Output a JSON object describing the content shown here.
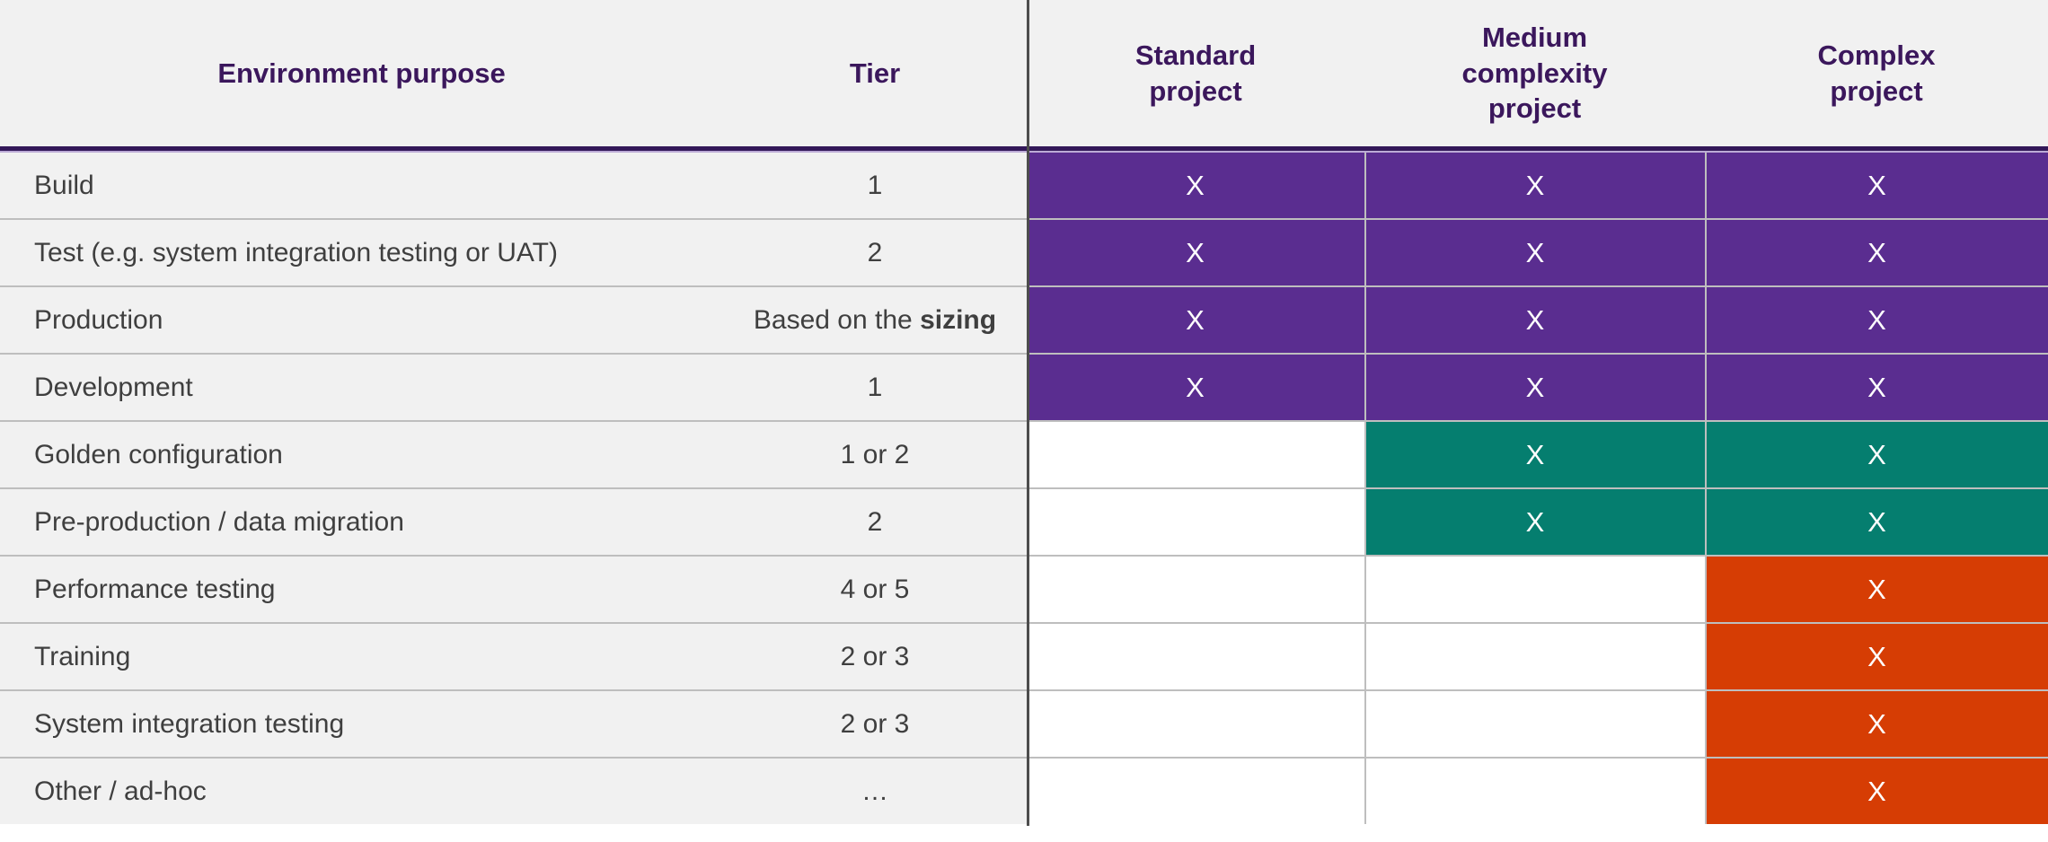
{
  "palette": {
    "purple": "#5A2D90",
    "teal": "#057E6F",
    "orange": "#D63D04",
    "none": "#FFFFFF",
    "header_text": "#3B175C",
    "band": "#331859",
    "band_glow": "#BCABD6",
    "left_bg": "#F1F1F1",
    "body_text": "#3F3F3F",
    "grid": "#BEBEBE",
    "section_divider": "#4D4D4D",
    "mark_text": "#FFFFFF"
  },
  "header": {
    "purpose": "Environment purpose",
    "tier": "Tier",
    "projects": [
      "Standard project",
      "Medium complexity project",
      "Complex project"
    ]
  },
  "rows": [
    {
      "purpose": "Build",
      "tier": "1",
      "cells": [
        {
          "mark": "X",
          "color": "purple"
        },
        {
          "mark": "X",
          "color": "purple"
        },
        {
          "mark": "X",
          "color": "purple"
        }
      ]
    },
    {
      "purpose": "Test (e.g. system integration testing or UAT)",
      "tier": "2",
      "cells": [
        {
          "mark": "X",
          "color": "purple"
        },
        {
          "mark": "X",
          "color": "purple"
        },
        {
          "mark": "X",
          "color": "purple"
        }
      ]
    },
    {
      "purpose": "Production",
      "tier": "Based on the ",
      "tier_bold": "sizing",
      "cells": [
        {
          "mark": "X",
          "color": "purple"
        },
        {
          "mark": "X",
          "color": "purple"
        },
        {
          "mark": "X",
          "color": "purple"
        }
      ]
    },
    {
      "purpose": "Development",
      "tier": "1",
      "cells": [
        {
          "mark": "X",
          "color": "purple"
        },
        {
          "mark": "X",
          "color": "purple"
        },
        {
          "mark": "X",
          "color": "purple"
        }
      ]
    },
    {
      "purpose": "Golden configuration",
      "tier": "1 or 2",
      "cells": [
        {
          "mark": "",
          "color": "none"
        },
        {
          "mark": "X",
          "color": "teal"
        },
        {
          "mark": "X",
          "color": "teal"
        }
      ]
    },
    {
      "purpose": "Pre-production / data migration",
      "tier": "2",
      "cells": [
        {
          "mark": "",
          "color": "none"
        },
        {
          "mark": "X",
          "color": "teal"
        },
        {
          "mark": "X",
          "color": "teal"
        }
      ]
    },
    {
      "purpose": "Performance testing",
      "tier": "4 or 5",
      "cells": [
        {
          "mark": "",
          "color": "none"
        },
        {
          "mark": "",
          "color": "none"
        },
        {
          "mark": "X",
          "color": "orange"
        }
      ]
    },
    {
      "purpose": "Training",
      "tier": "2 or 3",
      "cells": [
        {
          "mark": "",
          "color": "none"
        },
        {
          "mark": "",
          "color": "none"
        },
        {
          "mark": "X",
          "color": "orange"
        }
      ]
    },
    {
      "purpose": "System integration testing",
      "tier": "2 or 3",
      "cells": [
        {
          "mark": "",
          "color": "none"
        },
        {
          "mark": "",
          "color": "none"
        },
        {
          "mark": "X",
          "color": "orange"
        }
      ]
    },
    {
      "purpose": "Other / ad-hoc",
      "tier": "…",
      "cells": [
        {
          "mark": "",
          "color": "none"
        },
        {
          "mark": "",
          "color": "none"
        },
        {
          "mark": "X",
          "color": "orange"
        }
      ]
    }
  ]
}
